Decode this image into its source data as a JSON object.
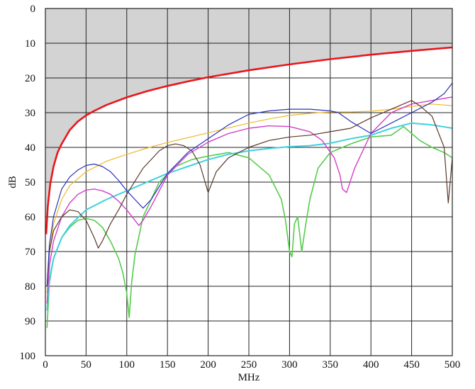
{
  "chart_data": {
    "type": "line",
    "title": "",
    "xlabel": "MHz",
    "ylabel": "dB",
    "xlim": [
      0,
      500
    ],
    "ylim": [
      0,
      100
    ],
    "y_inverted": true,
    "x_ticks": [
      "0",
      "50",
      "100",
      "150",
      "200",
      "250",
      "300",
      "350",
      "400",
      "450",
      "500"
    ],
    "y_ticks": [
      "0",
      "10",
      "20",
      "30",
      "40",
      "50",
      "60",
      "70",
      "80",
      "90",
      "100"
    ],
    "grid": true,
    "legend": "none",
    "shaded_region": {
      "description": "area above limit curve",
      "color": "#d3d3d3"
    },
    "series": [
      {
        "color": "#e8161b",
        "width": 2.6,
        "x": [
          1,
          3,
          6,
          10,
          15,
          20,
          30,
          40,
          50,
          60,
          75,
          100,
          125,
          150,
          175,
          200,
          250,
          300,
          350,
          400,
          450,
          500
        ],
        "y": [
          65,
          57,
          50.5,
          45.5,
          41.5,
          39,
          35,
          32.5,
          30.8,
          29.5,
          27.8,
          25.6,
          23.8,
          22.3,
          21,
          19.8,
          17.8,
          16.1,
          14.6,
          13.3,
          12.2,
          11.2
        ]
      },
      {
        "color": "#f0b728",
        "width": 1.2,
        "x": [
          2,
          5,
          10,
          20,
          30,
          50,
          75,
          100,
          125,
          150,
          175,
          200,
          225,
          250,
          275,
          300,
          325,
          350,
          375,
          400,
          425,
          450,
          475,
          500
        ],
        "y": [
          82,
          70,
          62,
          55,
          51,
          47,
          44,
          42,
          40.2,
          38.6,
          37.2,
          35.8,
          34.4,
          33,
          31.8,
          30.8,
          30.2,
          29.8,
          29.8,
          29.6,
          29,
          28.2,
          27.5,
          28
        ]
      },
      {
        "color": "#2b32b8",
        "width": 1.2,
        "x": [
          2,
          5,
          10,
          20,
          30,
          40,
          50,
          60,
          70,
          80,
          90,
          100,
          110,
          120,
          130,
          150,
          175,
          200,
          225,
          250,
          275,
          300,
          325,
          350,
          360,
          375,
          400,
          425,
          450,
          475,
          490,
          500
        ],
        "y": [
          80,
          68,
          60,
          52,
          48.5,
          46.5,
          45.2,
          44.8,
          45.5,
          47,
          49.5,
          52.5,
          55,
          57.5,
          55,
          47.5,
          41.5,
          37.5,
          33.5,
          30.5,
          29.5,
          29,
          29,
          29.5,
          30,
          32.5,
          36,
          33,
          30,
          27,
          24.5,
          21.5
        ]
      },
      {
        "color": "#5b3a29",
        "width": 1.2,
        "x": [
          2,
          5,
          10,
          20,
          30,
          40,
          50,
          60,
          65,
          70,
          80,
          90,
          100,
          120,
          140,
          150,
          160,
          170,
          180,
          190,
          200,
          210,
          225,
          250,
          275,
          300,
          325,
          350,
          375,
          400,
          425,
          450,
          460,
          475,
          490,
          495,
          500
        ],
        "y": [
          80,
          70,
          64,
          60,
          58,
          58.5,
          61,
          66,
          69,
          67,
          62,
          58,
          53.5,
          46,
          41,
          39.5,
          39,
          39.5,
          41,
          45,
          53,
          47,
          43,
          40,
          38,
          37,
          36.5,
          35.5,
          34.5,
          31.5,
          29,
          26.5,
          28,
          31,
          40,
          56,
          43
        ]
      },
      {
        "color": "#d23ec8",
        "width": 1.4,
        "x": [
          2,
          5,
          10,
          20,
          30,
          40,
          50,
          60,
          70,
          80,
          90,
          100,
          110,
          115,
          120,
          130,
          150,
          175,
          200,
          225,
          250,
          275,
          300,
          325,
          340,
          355,
          362,
          365,
          370,
          380,
          400,
          425,
          450,
          475,
          500
        ],
        "y": [
          85,
          74,
          67,
          60,
          56,
          53.5,
          52.3,
          52,
          52.5,
          53.5,
          55.5,
          58,
          61,
          62.5,
          61,
          57,
          48,
          42,
          38.5,
          36,
          34.5,
          33.8,
          34,
          35.5,
          38,
          43,
          48,
          52,
          53,
          46,
          36,
          30,
          27.5,
          26.5,
          25.5
        ]
      },
      {
        "color": "#3fd0e0",
        "width": 2,
        "x": [
          2,
          5,
          10,
          20,
          30,
          50,
          75,
          100,
          125,
          150,
          175,
          200,
          225,
          250,
          275,
          300,
          325,
          350,
          375,
          400,
          425,
          450,
          475,
          500
        ],
        "y": [
          87,
          78,
          72,
          66,
          62.5,
          58,
          55,
          52.5,
          50,
          47.5,
          45.5,
          43.5,
          42,
          41,
          40.3,
          39.8,
          39.5,
          38.8,
          37.5,
          36.5,
          34.5,
          33,
          33.5,
          34.5
        ]
      },
      {
        "color": "#55cc4a",
        "width": 1.6,
        "x": [
          2,
          5,
          10,
          20,
          30,
          40,
          50,
          60,
          70,
          80,
          90,
          95,
          100,
          103,
          106,
          110,
          120,
          140,
          160,
          180,
          200,
          225,
          250,
          275,
          290,
          295,
          300,
          303,
          306,
          310,
          315,
          320,
          325,
          335,
          350,
          375,
          400,
          425,
          440,
          450,
          460,
          475,
          490,
          500
        ],
        "y": [
          92,
          79,
          72,
          66,
          63,
          61,
          60.5,
          61,
          63,
          67,
          72,
          76,
          82,
          89,
          79,
          71,
          60,
          50,
          45.5,
          43.5,
          42.5,
          41.5,
          43,
          48,
          55,
          61,
          70,
          71.5,
          62,
          60,
          70,
          62,
          55,
          46,
          41.5,
          39,
          37,
          36.5,
          34,
          36,
          38,
          40,
          41.5,
          43
        ]
      }
    ]
  }
}
